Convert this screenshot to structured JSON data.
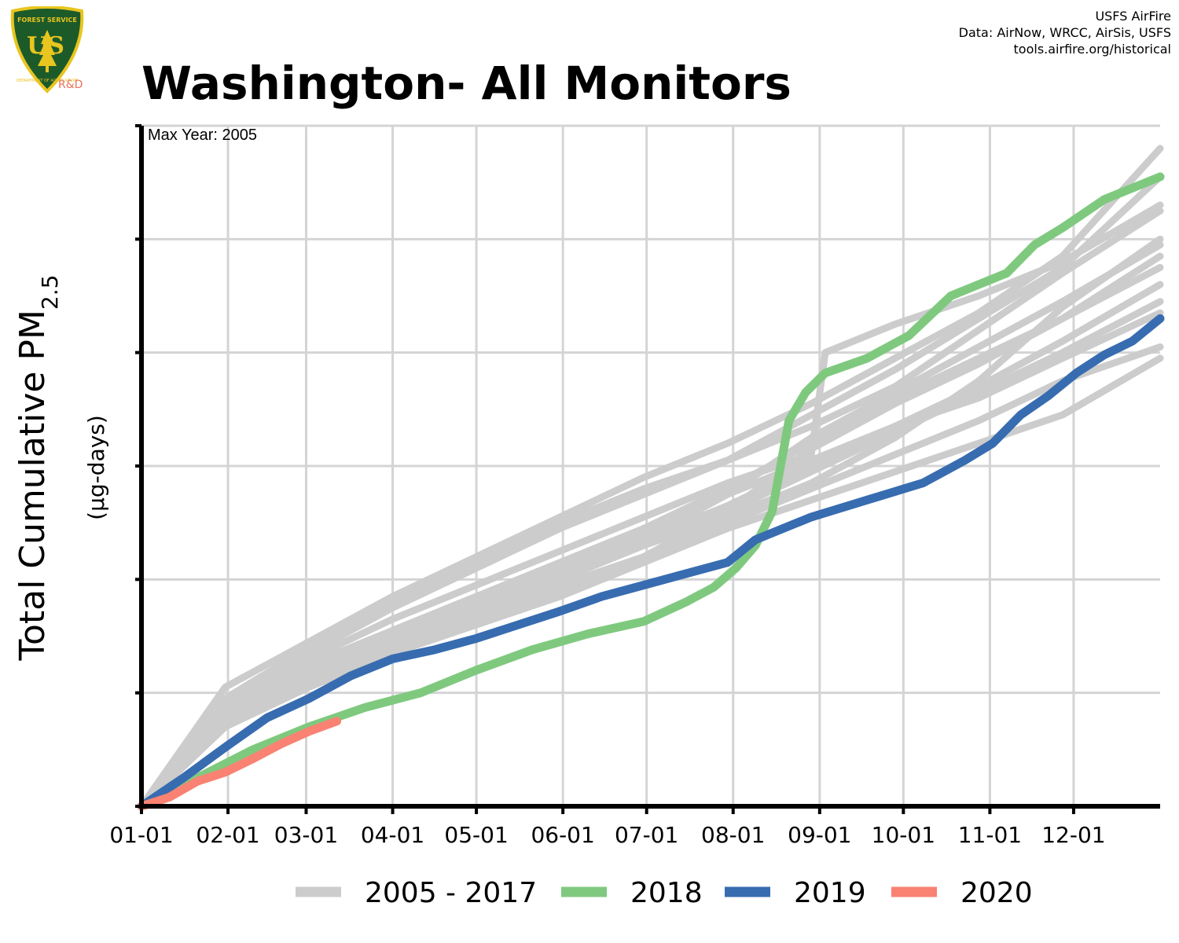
{
  "header": {
    "title": "Washington- All Monitors",
    "credits": [
      "USFS AirFire",
      "Data: AirNow, WRCC, AirSis, USFS",
      "tools.airfire.org/historical"
    ],
    "logo": {
      "shield_text": "US",
      "top_text": "FOREST SERVICE",
      "bottom_text": "DEPARTMENT OF AGRICULTURE",
      "badge": "R&D",
      "colors": {
        "shield": "#1d5a2a",
        "gold": "#e8c51f",
        "badge": "#e8735c"
      }
    }
  },
  "chart_data": {
    "type": "line",
    "annotation": "Max Year: 2005",
    "ylabel": "Total Cumulative PM",
    "ylabel_subscript": "2.5",
    "ylabel_units": "(µg-days)",
    "x_tick_labels": [
      "01-01",
      "02-01",
      "03-01",
      "04-01",
      "05-01",
      "06-01",
      "07-01",
      "08-01",
      "09-01",
      "10-01",
      "11-01",
      "12-01"
    ],
    "x_tick_days": [
      0,
      31,
      59,
      90,
      120,
      151,
      181,
      212,
      243,
      273,
      304,
      334
    ],
    "xlim": [
      0,
      365
    ],
    "ylim": [
      0,
      6
    ],
    "y_ticks": [
      0,
      1,
      2,
      3,
      4,
      5,
      6
    ],
    "y_tick_labels_visible": false,
    "grid": true,
    "legend": {
      "position": "bottom",
      "entries": [
        {
          "label": "2005 - 2017",
          "color": "#cccccc"
        },
        {
          "label": "2018",
          "color": "#7fc97f"
        },
        {
          "label": "2019",
          "color": "#386cb0"
        },
        {
          "label": "2020",
          "color": "#f98273"
        }
      ]
    },
    "background_series": {
      "label": "2005 - 2017",
      "color": "#cccccc",
      "lines": [
        {
          "x": [
            0,
            30,
            60,
            90,
            120,
            150,
            180,
            210,
            240,
            270,
            300,
            330,
            365
          ],
          "y": [
            0,
            1.05,
            1.45,
            1.85,
            2.2,
            2.55,
            2.9,
            3.2,
            3.55,
            3.95,
            4.35,
            4.85,
            5.8
          ]
        },
        {
          "x": [
            0,
            30,
            60,
            90,
            120,
            150,
            180,
            210,
            240,
            270,
            300,
            330,
            365
          ],
          "y": [
            0,
            0.9,
            1.35,
            1.75,
            2.1,
            2.45,
            2.75,
            3.05,
            3.45,
            3.85,
            4.3,
            4.75,
            5.55
          ]
        },
        {
          "x": [
            0,
            30,
            60,
            90,
            120,
            150,
            180,
            210,
            240,
            245,
            270,
            300,
            330,
            365
          ],
          "y": [
            0,
            0.85,
            1.3,
            1.65,
            1.95,
            2.25,
            2.55,
            2.85,
            3.1,
            4.0,
            4.25,
            4.5,
            4.8,
            5.3
          ]
        },
        {
          "x": [
            0,
            30,
            60,
            90,
            120,
            150,
            180,
            210,
            240,
            270,
            300,
            330,
            365
          ],
          "y": [
            0,
            0.8,
            1.2,
            1.55,
            1.85,
            2.15,
            2.45,
            2.8,
            3.2,
            3.6,
            3.95,
            4.3,
            4.85
          ]
        },
        {
          "x": [
            0,
            30,
            60,
            90,
            120,
            150,
            180,
            210,
            240,
            270,
            300,
            330,
            365
          ],
          "y": [
            0,
            0.85,
            1.25,
            1.55,
            1.85,
            2.1,
            2.35,
            2.75,
            3.25,
            3.65,
            4.05,
            4.45,
            4.95
          ]
        },
        {
          "x": [
            0,
            30,
            60,
            90,
            120,
            150,
            180,
            210,
            240,
            270,
            300,
            330,
            365
          ],
          "y": [
            0,
            0.75,
            1.15,
            1.45,
            1.75,
            2.05,
            2.35,
            2.65,
            3.0,
            3.35,
            3.7,
            4.1,
            4.6
          ]
        },
        {
          "x": [
            0,
            30,
            60,
            90,
            120,
            150,
            180,
            210,
            240,
            270,
            300,
            330,
            365
          ],
          "y": [
            0,
            0.8,
            1.2,
            1.5,
            1.8,
            2.1,
            2.4,
            2.75,
            3.05,
            3.35,
            3.6,
            3.95,
            4.35
          ]
        },
        {
          "x": [
            0,
            30,
            60,
            90,
            120,
            150,
            180,
            210,
            240,
            270,
            300,
            330,
            365
          ],
          "y": [
            0,
            0.7,
            1.1,
            1.4,
            1.7,
            1.95,
            2.2,
            2.5,
            2.8,
            3.1,
            3.4,
            3.75,
            4.05
          ]
        },
        {
          "x": [
            0,
            30,
            60,
            90,
            120,
            150,
            180,
            210,
            240,
            270,
            300,
            330,
            365
          ],
          "y": [
            0,
            0.75,
            1.1,
            1.35,
            1.6,
            1.85,
            2.15,
            2.45,
            2.7,
            2.95,
            3.2,
            3.45,
            3.95
          ]
        },
        {
          "x": [
            0,
            30,
            60,
            90,
            120,
            150,
            180,
            210,
            240,
            270,
            300,
            330,
            365
          ],
          "y": [
            0,
            0.95,
            1.4,
            1.8,
            2.15,
            2.5,
            2.8,
            3.05,
            3.35,
            3.7,
            4.2,
            4.7,
            5.25
          ]
        },
        {
          "x": [
            0,
            30,
            60,
            90,
            120,
            150,
            180,
            210,
            240,
            270,
            300,
            330,
            365
          ],
          "y": [
            0,
            0.7,
            1.05,
            1.35,
            1.65,
            1.9,
            2.2,
            2.6,
            3.15,
            3.55,
            3.9,
            4.3,
            4.75
          ]
        },
        {
          "x": [
            0,
            30,
            60,
            90,
            120,
            150,
            180,
            210,
            240,
            270,
            300,
            330,
            365
          ],
          "y": [
            0,
            0.8,
            1.15,
            1.45,
            1.75,
            2.05,
            2.3,
            2.55,
            2.85,
            3.25,
            3.75,
            4.4,
            5.0
          ]
        },
        {
          "x": [
            0,
            30,
            60,
            90,
            120,
            150,
            180,
            210,
            240,
            270,
            300,
            330,
            365
          ],
          "y": [
            0,
            0.75,
            1.1,
            1.4,
            1.7,
            2.0,
            2.3,
            2.6,
            2.95,
            3.3,
            3.65,
            4.0,
            4.45
          ]
        }
      ]
    },
    "series": [
      {
        "name": "2018",
        "color": "#7fc97f",
        "x": [
          0,
          20,
          40,
          60,
          80,
          100,
          120,
          140,
          160,
          180,
          195,
          205,
          213,
          220,
          226,
          232,
          238,
          245,
          260,
          275,
          290,
          300,
          310,
          320,
          330,
          345,
          365
        ],
        "y": [
          0,
          0.25,
          0.5,
          0.7,
          0.87,
          1.0,
          1.2,
          1.38,
          1.52,
          1.63,
          1.8,
          1.93,
          2.1,
          2.3,
          2.6,
          3.4,
          3.65,
          3.82,
          3.95,
          4.15,
          4.5,
          4.6,
          4.7,
          4.95,
          5.1,
          5.35,
          5.55
        ]
      },
      {
        "name": "2019",
        "color": "#386cb0",
        "x": [
          0,
          15,
          30,
          45,
          60,
          75,
          90,
          105,
          120,
          135,
          150,
          165,
          180,
          195,
          210,
          220,
          240,
          260,
          280,
          295,
          305,
          315,
          325,
          335,
          345,
          355,
          365
        ],
        "y": [
          0,
          0.25,
          0.52,
          0.78,
          0.95,
          1.15,
          1.3,
          1.38,
          1.48,
          1.6,
          1.72,
          1.85,
          1.95,
          2.05,
          2.15,
          2.35,
          2.55,
          2.7,
          2.85,
          3.05,
          3.2,
          3.45,
          3.62,
          3.82,
          3.98,
          4.1,
          4.3
        ]
      },
      {
        "name": "2020",
        "color": "#f98273",
        "x": [
          0,
          10,
          20,
          30,
          40,
          50,
          60,
          70
        ],
        "y": [
          0,
          0.08,
          0.22,
          0.3,
          0.42,
          0.55,
          0.66,
          0.75
        ]
      }
    ]
  }
}
